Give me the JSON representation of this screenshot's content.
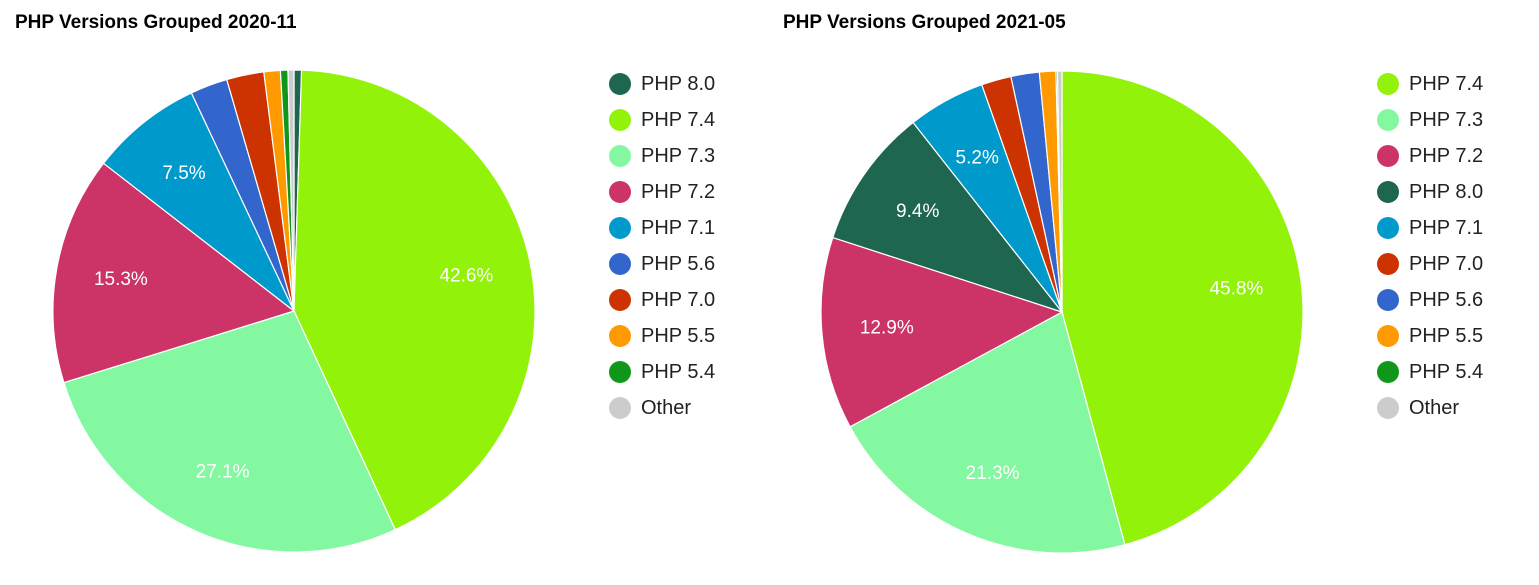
{
  "chart_data": [
    {
      "type": "pie",
      "title": "PHP Versions Grouped 2020-11",
      "start_angle_deg": 0,
      "direction": "clockwise",
      "slices": [
        {
          "label": "PHP 8.0",
          "value": 0.5,
          "color": "#1e6650",
          "show_label": false
        },
        {
          "label": "PHP 7.4",
          "value": 42.6,
          "color": "#92f20a",
          "show_label": true,
          "label_text": "42.6%"
        },
        {
          "label": "PHP 7.3",
          "value": 27.1,
          "color": "#84f8a1",
          "show_label": true,
          "label_text": "27.1%"
        },
        {
          "label": "PHP 7.2",
          "value": 15.3,
          "color": "#cc3366",
          "show_label": true,
          "label_text": "15.3%"
        },
        {
          "label": "PHP 7.1",
          "value": 7.5,
          "color": "#0099cc",
          "show_label": true,
          "label_text": "7.5%"
        },
        {
          "label": "PHP 5.6",
          "value": 2.5,
          "color": "#3366cc",
          "show_label": false
        },
        {
          "label": "PHP 7.0",
          "value": 2.5,
          "color": "#cc3300",
          "show_label": false
        },
        {
          "label": "PHP 5.5",
          "value": 1.1,
          "color": "#ff9900",
          "show_label": false
        },
        {
          "label": "PHP 5.4",
          "value": 0.5,
          "color": "#109618",
          "show_label": false
        },
        {
          "label": "Other",
          "value": 0.4,
          "color": "#cccccc",
          "show_label": false
        }
      ],
      "legend": [
        {
          "label": "PHP 8.0",
          "color": "#1e6650"
        },
        {
          "label": "PHP 7.4",
          "color": "#92f20a"
        },
        {
          "label": "PHP 7.3",
          "color": "#84f8a1"
        },
        {
          "label": "PHP 7.2",
          "color": "#cc3366"
        },
        {
          "label": "PHP 7.1",
          "color": "#0099cc"
        },
        {
          "label": "PHP 5.6",
          "color": "#3366cc"
        },
        {
          "label": "PHP 7.0",
          "color": "#cc3300"
        },
        {
          "label": "PHP 5.5",
          "color": "#ff9900"
        },
        {
          "label": "PHP 5.4",
          "color": "#109618"
        },
        {
          "label": "Other",
          "color": "#cccccc"
        }
      ],
      "legend_position": "right"
    },
    {
      "type": "pie",
      "title": "PHP Versions Grouped 2021-05",
      "start_angle_deg": 0,
      "direction": "clockwise",
      "slices": [
        {
          "label": "PHP 7.4",
          "value": 45.8,
          "color": "#92f20a",
          "show_label": true,
          "label_text": "45.8%"
        },
        {
          "label": "PHP 7.3",
          "value": 21.3,
          "color": "#84f8a1",
          "show_label": true,
          "label_text": "21.3%"
        },
        {
          "label": "PHP 7.2",
          "value": 12.9,
          "color": "#cc3366",
          "show_label": true,
          "label_text": "12.9%"
        },
        {
          "label": "PHP 8.0",
          "value": 9.4,
          "color": "#1e6650",
          "show_label": true,
          "label_text": "9.4%"
        },
        {
          "label": "PHP 7.1",
          "value": 5.2,
          "color": "#0099cc",
          "show_label": true,
          "label_text": "5.2%"
        },
        {
          "label": "PHP 7.0",
          "value": 2.0,
          "color": "#cc3300",
          "show_label": false
        },
        {
          "label": "PHP 5.6",
          "value": 1.9,
          "color": "#3366cc",
          "show_label": false
        },
        {
          "label": "PHP 5.5",
          "value": 1.1,
          "color": "#ff9900",
          "show_label": false
        },
        {
          "label": "PHP 5.4",
          "value": 0.1,
          "color": "#109618",
          "show_label": false
        },
        {
          "label": "Other",
          "value": 0.3,
          "color": "#cccccc",
          "show_label": false
        }
      ],
      "legend": [
        {
          "label": "PHP 7.4",
          "color": "#92f20a"
        },
        {
          "label": "PHP 7.3",
          "color": "#84f8a1"
        },
        {
          "label": "PHP 7.2",
          "color": "#cc3366"
        },
        {
          "label": "PHP 8.0",
          "color": "#1e6650"
        },
        {
          "label": "PHP 7.1",
          "color": "#0099cc"
        },
        {
          "label": "PHP 7.0",
          "color": "#cc3300"
        },
        {
          "label": "PHP 5.6",
          "color": "#3366cc"
        },
        {
          "label": "PHP 5.5",
          "color": "#ff9900"
        },
        {
          "label": "PHP 5.4",
          "color": "#109618"
        },
        {
          "label": "Other",
          "color": "#cccccc"
        }
      ],
      "legend_position": "right"
    }
  ]
}
